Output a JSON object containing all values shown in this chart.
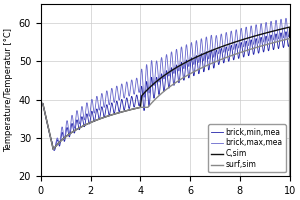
{
  "title": "",
  "ylabel": "Temperature/Temperatur [°C]",
  "xlabel": "",
  "xlim": [
    0,
    10
  ],
  "ylim": [
    20,
    65
  ],
  "yticks": [
    20,
    30,
    40,
    50,
    60
  ],
  "xticks": [
    0,
    2,
    4,
    6,
    8,
    10
  ],
  "color_min": "#2222aa",
  "color_max": "#6666cc",
  "color_csim": "#111111",
  "color_surf": "#888888",
  "legend_labels": [
    "brick,min,mea",
    "brick,max,mea",
    "C,sim",
    "surf,sim"
  ],
  "background_color": "#ffffff"
}
